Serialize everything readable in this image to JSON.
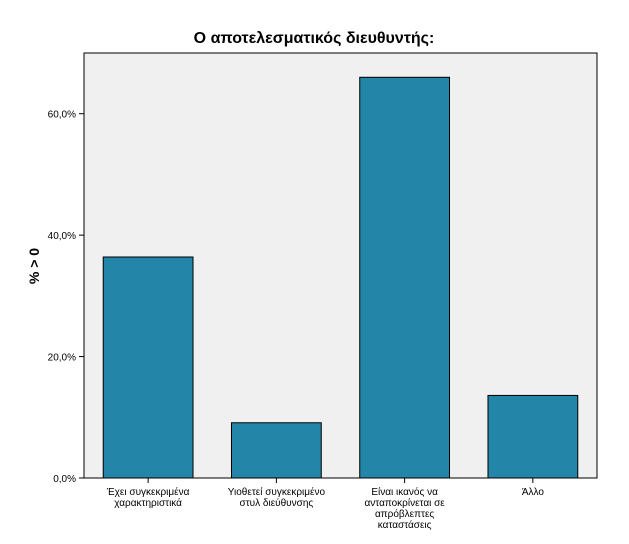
{
  "chart_data": {
    "type": "bar",
    "title": "Ο αποτελεσματικός διευθυντής:",
    "xlabel": "",
    "ylabel": "% > 0",
    "ylim": [
      0,
      70
    ],
    "yticks": [
      "0,0%",
      "20,0%",
      "40,0%",
      "60,0%"
    ],
    "ytick_values": [
      0,
      20,
      40,
      60
    ],
    "categories": [
      [
        "Έχει συγκεκριμένα",
        "χαρακτηριστικά"
      ],
      [
        "Υιοθετεί συγκεκριμένο",
        "στυλ διεύθυνσης"
      ],
      [
        "Είναι ικανός να",
        "ανταποκρίνεται σε",
        "απρόβλεπτες",
        "καταστάσεις"
      ],
      [
        "Άλλο"
      ]
    ],
    "values": [
      36.4,
      9.1,
      66.0,
      13.6
    ],
    "colors": {
      "bar": "#2385a8",
      "plot_bg": "#f0f0f0",
      "page_bg": "#ffffff"
    }
  }
}
